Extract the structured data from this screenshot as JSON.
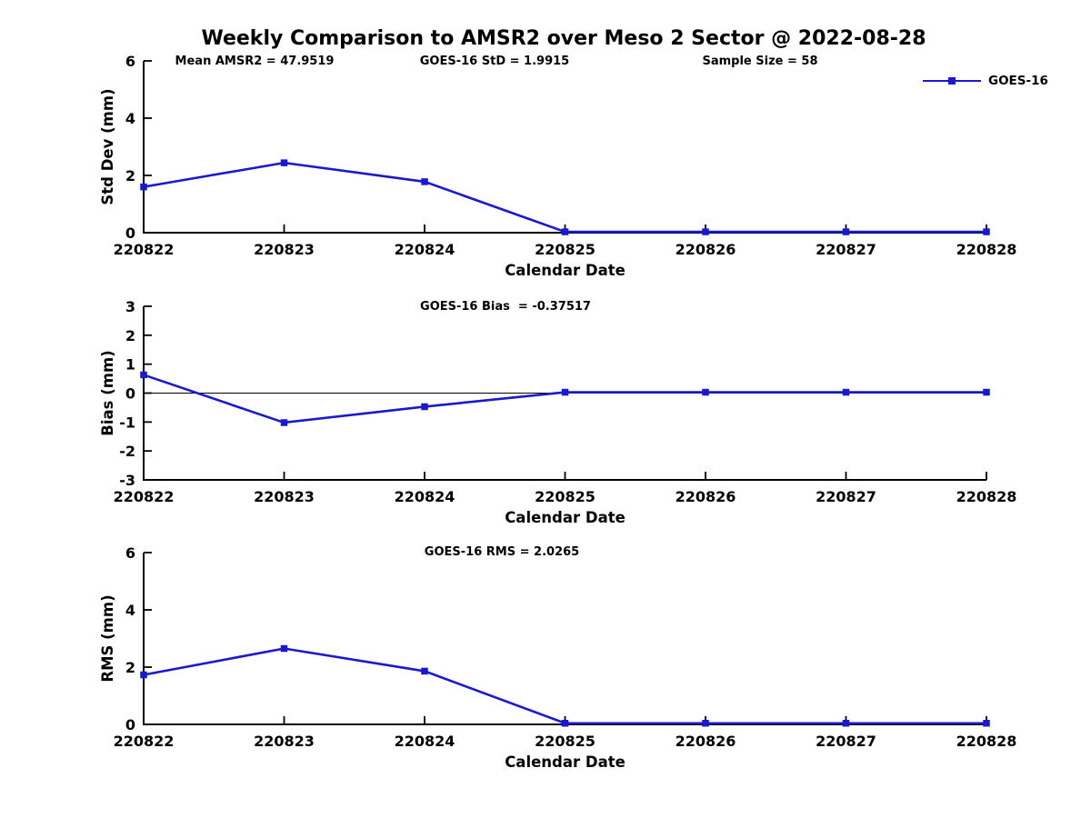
{
  "title": "Weekly Comparison to AMSR2 over Meso 2 Sector @ 2022-08-28",
  "legend": {
    "label": "GOES-16"
  },
  "colors": {
    "line": "#1a1acc",
    "axis": "#000000",
    "text": "#000000",
    "background": "#ffffff"
  },
  "chart_data": [
    {
      "type": "line",
      "name": "std-dev",
      "series_name": "GOES-16",
      "categories": [
        "220822",
        "220823",
        "220824",
        "220825",
        "220826",
        "220827",
        "220828"
      ],
      "values": [
        1.6,
        2.44,
        1.78,
        0.03,
        0.03,
        0.03,
        0.03
      ],
      "xlabel": "Calendar Date",
      "ylabel": "Std Dev (mm)",
      "ylim": [
        0,
        6
      ],
      "yticks": [
        0,
        2,
        4,
        6
      ],
      "grid": false,
      "marker": "square",
      "annotations": [
        "Mean AMSR2 = 47.9519",
        "GOES-16 StD = 1.9915",
        "Sample Size = 58"
      ]
    },
    {
      "type": "line",
      "name": "bias",
      "series_name": "GOES-16",
      "categories": [
        "220822",
        "220823",
        "220824",
        "220825",
        "220826",
        "220827",
        "220828"
      ],
      "values": [
        0.63,
        -1.02,
        -0.47,
        0.03,
        0.03,
        0.03,
        0.03
      ],
      "xlabel": "Calendar Date",
      "ylabel": "Bias (mm)",
      "ylim": [
        -3,
        3
      ],
      "yticks": [
        -3,
        -2,
        -1,
        0,
        1,
        2,
        3
      ],
      "grid": false,
      "zero_line": true,
      "marker": "square",
      "annotation": "GOES-16 Bias  = -0.37517"
    },
    {
      "type": "line",
      "name": "rms",
      "series_name": "GOES-16",
      "categories": [
        "220822",
        "220823",
        "220824",
        "220825",
        "220826",
        "220827",
        "220828"
      ],
      "values": [
        1.73,
        2.65,
        1.86,
        0.04,
        0.04,
        0.04,
        0.04
      ],
      "xlabel": "Calendar Date",
      "ylabel": "RMS (mm)",
      "ylim": [
        0,
        6
      ],
      "yticks": [
        0,
        2,
        4,
        6
      ],
      "grid": false,
      "marker": "square",
      "annotation": "GOES-16 RMS = 2.0265"
    }
  ]
}
